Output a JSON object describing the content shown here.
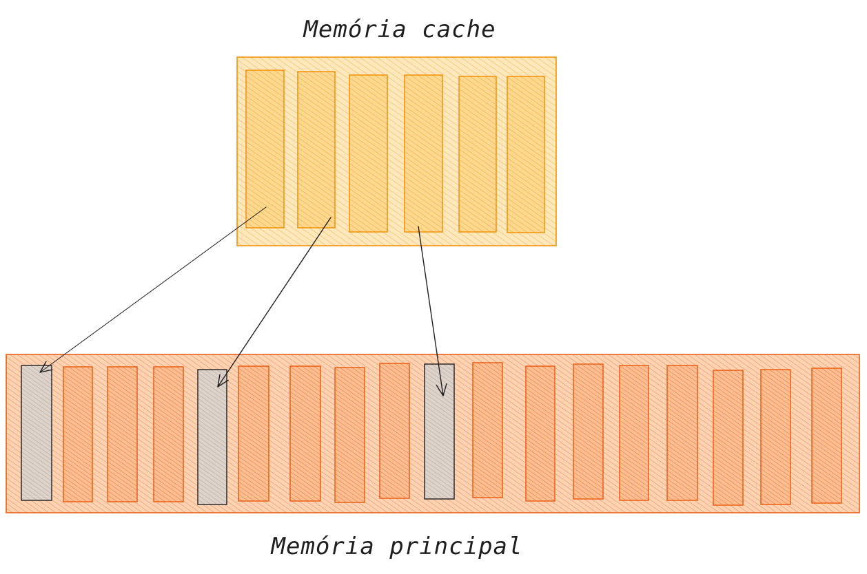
{
  "cache": {
    "title": "Memória cache",
    "slot_count": 6,
    "fill_color": "#ffd47f",
    "frame_fill": "#ffe0a3",
    "stroke_color": "#f08c00"
  },
  "main_memory": {
    "title": "Memória principal",
    "slot_count": 18,
    "fill_color": "#ffb07a",
    "frame_fill": "#ffc9a3",
    "stroke_color": "#e8590c",
    "highlighted_fill": "#ccc3bb",
    "highlighted_stroke": "#1e1e1e",
    "highlighted_slots": [
      1,
      5,
      10
    ]
  },
  "mappings": [
    {
      "from_cache_slot": 1,
      "to_main_slot": 1
    },
    {
      "from_cache_slot": 2,
      "to_main_slot": 5
    },
    {
      "from_cache_slot": 4,
      "to_main_slot": 10
    }
  ],
  "arrow_color": "#1e1e1e"
}
